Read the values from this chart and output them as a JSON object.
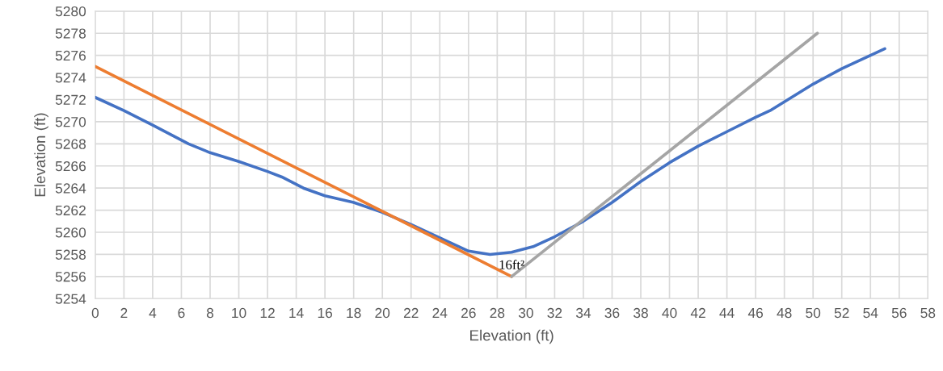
{
  "chart_data": {
    "type": "line",
    "xlabel": "Elevation (ft)",
    "ylabel": "Elevation (ft)",
    "xlim": [
      0,
      58
    ],
    "xticks": [
      0,
      2,
      4,
      6,
      8,
      10,
      12,
      14,
      16,
      18,
      20,
      22,
      24,
      26,
      28,
      30,
      32,
      34,
      36,
      38,
      40,
      42,
      44,
      46,
      48,
      50,
      52,
      54,
      56,
      58
    ],
    "ylim": [
      5254,
      5280
    ],
    "yticks": [
      5254,
      5256,
      5258,
      5260,
      5262,
      5264,
      5266,
      5268,
      5270,
      5272,
      5274,
      5276,
      5278,
      5280
    ],
    "grid": true,
    "legend": false,
    "marker": "none",
    "line_style": "solid",
    "series": [
      {
        "color": "#4472c4",
        "x": [
          0,
          2,
          4,
          6.5,
          8,
          10,
          12,
          13,
          14.5,
          16,
          18,
          20,
          22,
          24,
          26,
          27.5,
          29,
          30.5,
          32,
          34,
          36,
          38,
          40,
          42,
          44,
          46,
          47,
          48,
          50,
          52,
          54,
          55
        ],
        "values": [
          5272.2,
          5271,
          5269.7,
          5268,
          5267.2,
          5266.4,
          5265.5,
          5265,
          5264,
          5263.3,
          5262.7,
          5261.8,
          5260.7,
          5259.5,
          5258.3,
          5258,
          5258.2,
          5258.7,
          5259.6,
          5261,
          5262.7,
          5264.6,
          5266.3,
          5267.8,
          5269.1,
          5270.4,
          5271,
          5271.8,
          5273.4,
          5274.8,
          5276,
          5276.6
        ]
      },
      {
        "color": "#ed7d31",
        "x": [
          0,
          29
        ],
        "values": [
          5275,
          5256
        ]
      },
      {
        "color": "#a5a5a5",
        "x": [
          29,
          50.3
        ],
        "values": [
          5256,
          5278
        ]
      }
    ],
    "annotations": [
      {
        "text": "16ft²",
        "x": 29,
        "y": 5256
      }
    ]
  }
}
